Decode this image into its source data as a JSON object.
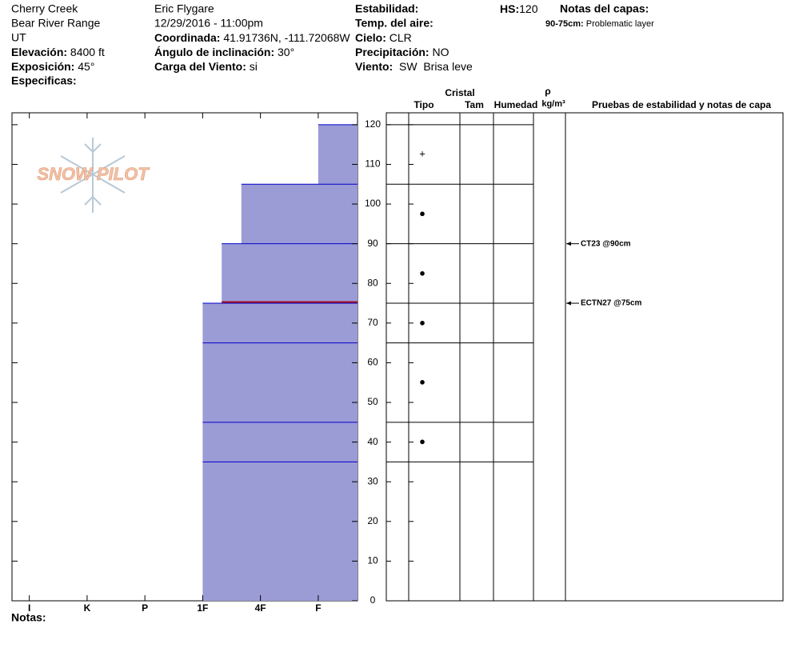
{
  "header": {
    "site": "Cherry Creek",
    "range": "Bear River Range",
    "state": "UT",
    "elevation": {
      "label": "Elevación:",
      "value": "8400 ft"
    },
    "aspect": {
      "label": "Exposición:",
      "value": "45°"
    },
    "specifics": {
      "label": "Especificas:"
    },
    "observer": "Eric Flygare",
    "datetime": "12/29/2016 - 11:00pm",
    "coordinates": {
      "label": "Coordinada:",
      "value": "41.91736N, -111.72068W"
    },
    "slope": {
      "label": "Ángulo de inclinación:",
      "value": "30°"
    },
    "wind_loading": {
      "label": "Carga del Viento:",
      "value": "si"
    },
    "stability": {
      "label": "Estabilidad:"
    },
    "air_temp": {
      "label": "Temp. del aire:"
    },
    "sky": {
      "label": "Cielo:",
      "value": "CLR"
    },
    "precip": {
      "label": "Precipitación:",
      "value": "NO"
    },
    "wind": {
      "label": "Viento:",
      "value": "SW  Brisa leve"
    },
    "hs": {
      "label": "HS:",
      "value": "120"
    },
    "layer_notes": {
      "label": "Notas del capas:",
      "range": "90-75cm:",
      "note": "Problematic layer"
    },
    "notes": {
      "label": "Notas:"
    }
  },
  "logo": "SNOW PILOT",
  "chart_data": {
    "type": "snow-profile",
    "ylim": [
      0,
      123
    ],
    "yticks": [
      0,
      10,
      20,
      30,
      40,
      50,
      60,
      70,
      80,
      90,
      100,
      110,
      120
    ],
    "xlim": [
      -0.3,
      5.68
    ],
    "xticks": [
      {
        "value": 0,
        "label": "I"
      },
      {
        "value": 1,
        "label": "K"
      },
      {
        "value": 2,
        "label": "P"
      },
      {
        "value": 3,
        "label": "1F"
      },
      {
        "value": 4,
        "label": "4F"
      },
      {
        "value": 5,
        "label": "F"
      }
    ],
    "color": "#9b9bd6",
    "layers": {
      "top": [
        120,
        105,
        90,
        75,
        65,
        45,
        35
      ],
      "bottom": [
        105,
        90,
        75,
        65,
        45,
        35,
        0
      ],
      "hardness": [
        5,
        3.67,
        3.33,
        3,
        3,
        3,
        3
      ],
      "crystal": [
        "+",
        "●",
        "●",
        "●",
        "●",
        "●",
        null
      ]
    },
    "problematic_layer": [
      90,
      75
    ],
    "tests": [
      {
        "label": "CT23 @90cm",
        "depth": 90
      },
      {
        "label": "ECTN27 @75cm",
        "depth": 75
      }
    ],
    "table_headers": {
      "crystal": "Cristal",
      "type": "Tipo",
      "size": "Tam",
      "moisture": "Humedad",
      "rho": "ρ",
      "density_unit": "kg/m³",
      "tests": "Pruebas de estabilidad y notas de capa"
    }
  }
}
